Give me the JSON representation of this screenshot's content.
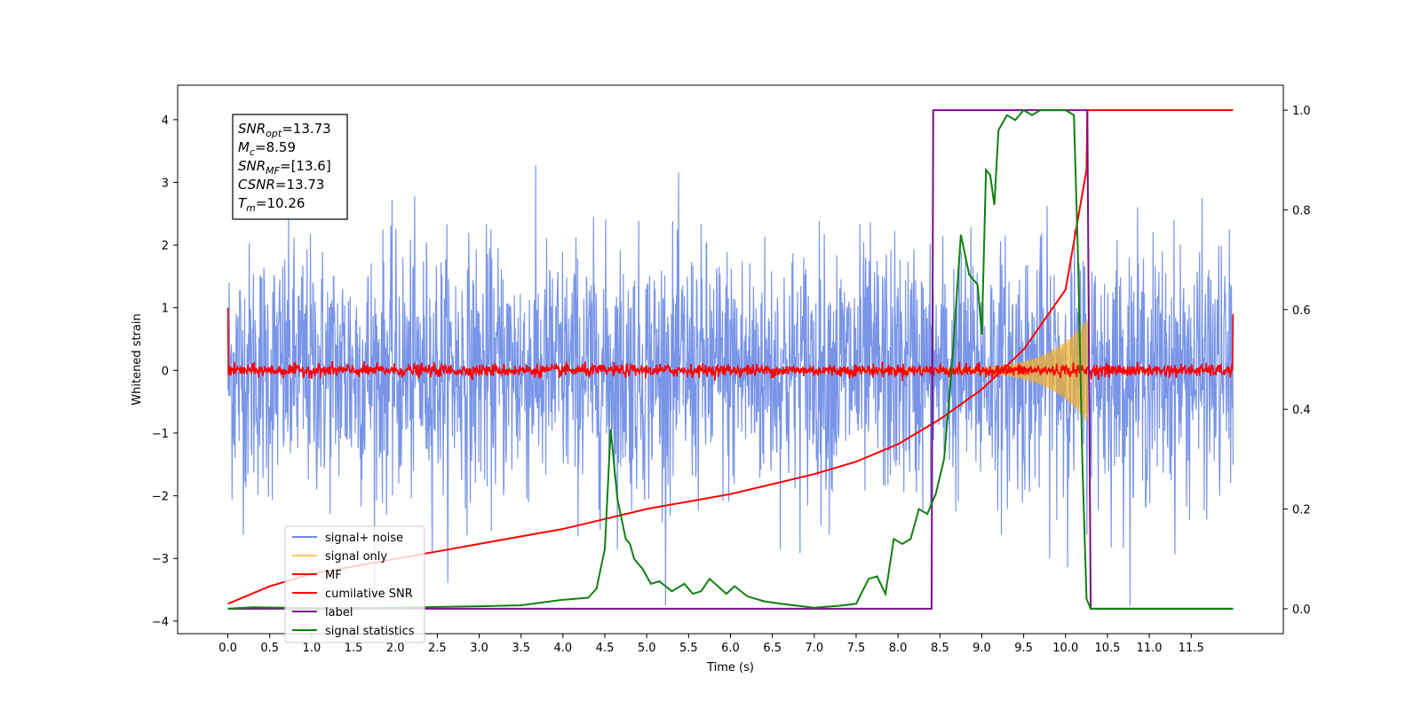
{
  "chart_data": {
    "type": "line",
    "title": "",
    "xlabel": "Time (s)",
    "ylabel": "Whitened strain",
    "xlim": [
      -0.6,
      12.6
    ],
    "ylim": [
      -4.2,
      4.55
    ],
    "y2lim": [
      -0.05,
      1.05
    ],
    "xticks": [
      "0.0",
      "0.5",
      "1.0",
      "1.5",
      "2.0",
      "2.5",
      "3.0",
      "3.5",
      "4.0",
      "4.5",
      "5.0",
      "5.5",
      "6.0",
      "6.5",
      "7.0",
      "7.5",
      "8.0",
      "8.5",
      "9.0",
      "9.5",
      "10.0",
      "10.5",
      "11.0",
      "11.5"
    ],
    "yticks": [
      "4",
      "3",
      "2",
      "1",
      "0",
      "−1",
      "−2",
      "−3",
      "−4"
    ],
    "y2ticks": [
      "1.0",
      "0.8",
      "0.6",
      "0.4",
      "0.2",
      "0.0"
    ],
    "grid": false,
    "legend_position": "bottom-left",
    "info_box": {
      "position": "top-left",
      "lines": [
        {
          "sym": "SNR",
          "sub": "opt",
          "val": "=13.73"
        },
        {
          "sym": "M",
          "sub": "c",
          "val": "=8.59"
        },
        {
          "sym": "SNR",
          "sub": "MF",
          "val": "=[13.6]"
        },
        {
          "sym": "CSNR",
          "sub": "",
          "val": "=13.73"
        },
        {
          "sym": "T",
          "sub": "m",
          "val": "=10.26"
        }
      ]
    },
    "series": [
      {
        "name": "signal+ noise",
        "axis": "left",
        "color": "#6a8ae6",
        "style": "noise",
        "x_range": [
          0,
          12
        ],
        "amplitude_sigma": 1.0
      },
      {
        "name": "signal only",
        "axis": "left",
        "color": "#f0b030",
        "style": "chirp",
        "x_range": [
          7.5,
          10.26
        ],
        "peak_amplitude": 0.8
      },
      {
        "name": "MF",
        "axis": "left",
        "color": "#ff0000",
        "style": "noise",
        "x_range": [
          0,
          12
        ],
        "amplitude_sigma": 0.05,
        "edge_values": [
          1.0,
          0.9
        ]
      },
      {
        "name": "cumilative SNR",
        "axis": "right",
        "color": "#ff0000",
        "x": [
          0.0,
          0.5,
          1.0,
          1.5,
          2.0,
          2.5,
          3.0,
          3.5,
          4.0,
          4.5,
          5.0,
          5.5,
          6.0,
          6.5,
          7.0,
          7.5,
          8.0,
          8.5,
          9.0,
          9.5,
          10.0,
          10.25,
          10.26,
          12.0
        ],
        "y": [
          0.01,
          0.045,
          0.07,
          0.085,
          0.1,
          0.115,
          0.13,
          0.145,
          0.16,
          0.18,
          0.2,
          0.215,
          0.23,
          0.25,
          0.27,
          0.295,
          0.33,
          0.38,
          0.44,
          0.52,
          0.64,
          0.88,
          1.0,
          1.0
        ]
      },
      {
        "name": "label",
        "axis": "right",
        "color": "#7a0f8a",
        "x": [
          0.0,
          8.4,
          8.42,
          10.26,
          10.3,
          12.0
        ],
        "y": [
          0.0,
          0.0,
          1.0,
          1.0,
          0.0,
          0.0
        ]
      },
      {
        "name": "signal statistics",
        "axis": "right",
        "color": "#108010",
        "x": [
          0.0,
          0.3,
          1.0,
          2.0,
          3.0,
          3.5,
          4.0,
          4.3,
          4.4,
          4.5,
          4.57,
          4.65,
          4.75,
          4.8,
          4.85,
          4.95,
          5.05,
          5.15,
          5.3,
          5.45,
          5.55,
          5.65,
          5.75,
          5.85,
          5.95,
          6.05,
          6.2,
          6.4,
          6.6,
          6.8,
          7.0,
          7.3,
          7.5,
          7.65,
          7.75,
          7.85,
          7.95,
          8.05,
          8.15,
          8.25,
          8.35,
          8.45,
          8.55,
          8.65,
          8.75,
          8.85,
          8.95,
          9.0,
          9.05,
          9.1,
          9.15,
          9.2,
          9.3,
          9.4,
          9.5,
          9.6,
          9.7,
          9.8,
          9.9,
          10.0,
          10.1,
          10.15,
          10.2,
          10.25,
          10.3,
          11.0,
          12.0
        ],
        "y": [
          0.0,
          0.003,
          0.001,
          0.002,
          0.005,
          0.007,
          0.018,
          0.022,
          0.04,
          0.12,
          0.36,
          0.22,
          0.14,
          0.13,
          0.1,
          0.08,
          0.05,
          0.055,
          0.035,
          0.05,
          0.03,
          0.035,
          0.06,
          0.045,
          0.03,
          0.045,
          0.025,
          0.015,
          0.01,
          0.006,
          0.002,
          0.006,
          0.01,
          0.06,
          0.065,
          0.03,
          0.14,
          0.13,
          0.14,
          0.2,
          0.19,
          0.23,
          0.3,
          0.5,
          0.75,
          0.67,
          0.65,
          0.55,
          0.88,
          0.87,
          0.81,
          0.96,
          0.99,
          0.98,
          1.0,
          0.99,
          1.0,
          1.0,
          1.0,
          1.0,
          0.99,
          0.7,
          0.3,
          0.02,
          0.0,
          0.0,
          0.0
        ]
      }
    ]
  }
}
